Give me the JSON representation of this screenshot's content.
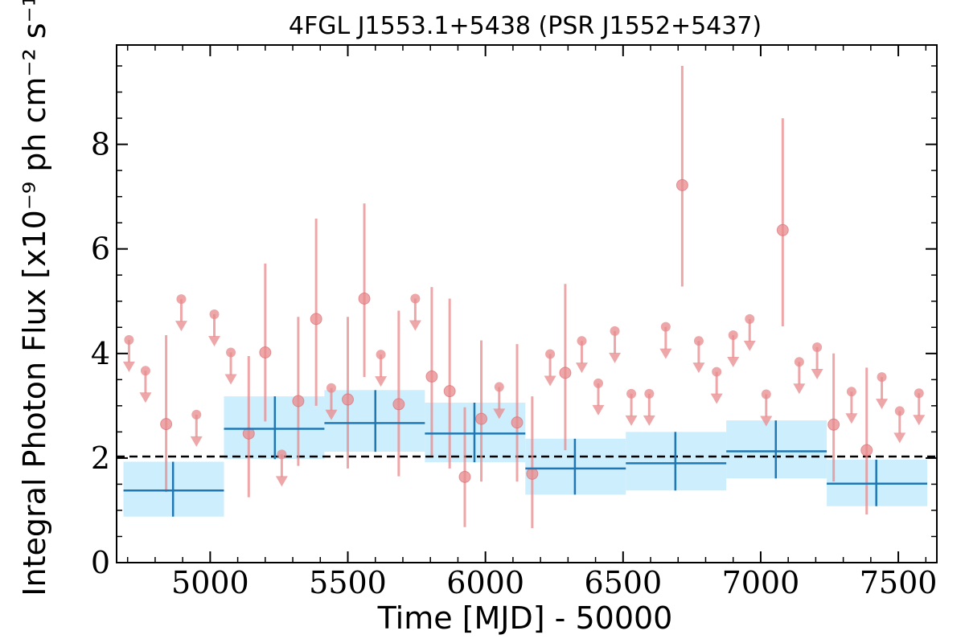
{
  "chart_data": {
    "type": "scatter",
    "title": "4FGL J1553.1+5438 (PSR J1552+5437)",
    "xlabel": "Time [MJD] - 50000",
    "ylabel": "Integral Photon Flux [x10⁻⁹ ph cm⁻² s⁻¹]",
    "xlim": [
      4660,
      7640
    ],
    "ylim": [
      0,
      9.9
    ],
    "xticks": [
      5000,
      5500,
      6000,
      6500,
      7000,
      7500
    ],
    "yticks": [
      0,
      2,
      4,
      6,
      8
    ],
    "reference_line": {
      "y": 2.03,
      "style": "dashed",
      "color": "#000000"
    },
    "colors": {
      "short_bins": "#e8898c",
      "long_bins": "#1f77b4",
      "long_band": "#cdeefc"
    },
    "series": [
      {
        "points": [
          {
            "x": 4840,
            "y": 2.65,
            "lo": 1.35,
            "hi": 4.35
          },
          {
            "x": 5140,
            "y": 2.47,
            "lo": 1.25,
            "hi": 3.95
          },
          {
            "x": 5200,
            "y": 4.02,
            "lo": 2.7,
            "hi": 5.72
          },
          {
            "x": 5320,
            "y": 3.09,
            "lo": 1.85,
            "hi": 4.7
          },
          {
            "x": 5385,
            "y": 4.66,
            "lo": 3.0,
            "hi": 6.58
          },
          {
            "x": 5500,
            "y": 3.12,
            "lo": 1.8,
            "hi": 4.7
          },
          {
            "x": 5560,
            "y": 5.05,
            "lo": 3.55,
            "hi": 6.87
          },
          {
            "x": 5685,
            "y": 3.03,
            "lo": 1.65,
            "hi": 4.82
          },
          {
            "x": 5805,
            "y": 3.56,
            "lo": 2.05,
            "hi": 5.27
          },
          {
            "x": 5870,
            "y": 3.28,
            "lo": 1.8,
            "hi": 5.05
          },
          {
            "x": 5925,
            "y": 1.64,
            "lo": 0.68,
            "hi": 2.97
          },
          {
            "x": 5985,
            "y": 2.75,
            "lo": 1.55,
            "hi": 4.25
          },
          {
            "x": 6115,
            "y": 2.68,
            "lo": 1.55,
            "hi": 4.18
          },
          {
            "x": 6170,
            "y": 1.7,
            "lo": 0.66,
            "hi": 3.18
          },
          {
            "x": 6290,
            "y": 3.63,
            "lo": 2.15,
            "hi": 5.33
          },
          {
            "x": 6715,
            "y": 7.22,
            "lo": 5.28,
            "hi": 9.5
          },
          {
            "x": 7080,
            "y": 6.36,
            "lo": 4.52,
            "hi": 8.5
          },
          {
            "x": 7265,
            "y": 2.64,
            "lo": 1.55,
            "hi": 4.0
          },
          {
            "x": 7385,
            "y": 2.15,
            "lo": 0.92,
            "hi": 3.73
          }
        ],
        "upper_limits": [
          {
            "x": 4705,
            "y": 4.26
          },
          {
            "x": 4765,
            "y": 3.67
          },
          {
            "x": 4895,
            "y": 5.04
          },
          {
            "x": 4950,
            "y": 2.83
          },
          {
            "x": 5015,
            "y": 4.75
          },
          {
            "x": 5075,
            "y": 4.02
          },
          {
            "x": 5260,
            "y": 2.07
          },
          {
            "x": 5440,
            "y": 3.34
          },
          {
            "x": 5620,
            "y": 3.98
          },
          {
            "x": 5745,
            "y": 5.05
          },
          {
            "x": 6050,
            "y": 3.36
          },
          {
            "x": 6235,
            "y": 3.99
          },
          {
            "x": 6350,
            "y": 4.24
          },
          {
            "x": 6410,
            "y": 3.43
          },
          {
            "x": 6470,
            "y": 4.43
          },
          {
            "x": 6530,
            "y": 3.23
          },
          {
            "x": 6595,
            "y": 3.23
          },
          {
            "x": 6655,
            "y": 4.51
          },
          {
            "x": 6775,
            "y": 4.24
          },
          {
            "x": 6840,
            "y": 3.65
          },
          {
            "x": 6900,
            "y": 4.35
          },
          {
            "x": 6960,
            "y": 4.66
          },
          {
            "x": 7020,
            "y": 3.22
          },
          {
            "x": 7140,
            "y": 3.84
          },
          {
            "x": 7205,
            "y": 4.12
          },
          {
            "x": 7330,
            "y": 3.27
          },
          {
            "x": 7440,
            "y": 3.55
          },
          {
            "x": 7505,
            "y": 2.9
          },
          {
            "x": 7575,
            "y": 3.24
          }
        ]
      },
      {
        "bins": [
          {
            "x0": 4685,
            "x1": 5050,
            "xc": 4865,
            "y": 1.38,
            "lo": 0.88,
            "hi": 1.93
          },
          {
            "x0": 5050,
            "x1": 5415,
            "xc": 5235,
            "y": 2.56,
            "lo": 1.98,
            "hi": 3.18
          },
          {
            "x0": 5415,
            "x1": 5780,
            "xc": 5600,
            "y": 2.67,
            "lo": 2.12,
            "hi": 3.3
          },
          {
            "x0": 5780,
            "x1": 6145,
            "xc": 5960,
            "y": 2.47,
            "lo": 1.92,
            "hi": 3.06
          },
          {
            "x0": 6145,
            "x1": 6510,
            "xc": 6325,
            "y": 1.8,
            "lo": 1.3,
            "hi": 2.37
          },
          {
            "x0": 6510,
            "x1": 6875,
            "xc": 6690,
            "y": 1.9,
            "lo": 1.38,
            "hi": 2.5
          },
          {
            "x0": 6875,
            "x1": 7240,
            "xc": 7055,
            "y": 2.13,
            "lo": 1.61,
            "hi": 2.72
          },
          {
            "x0": 7240,
            "x1": 7605,
            "xc": 7420,
            "y": 1.51,
            "lo": 1.08,
            "hi": 1.97
          }
        ]
      }
    ]
  }
}
